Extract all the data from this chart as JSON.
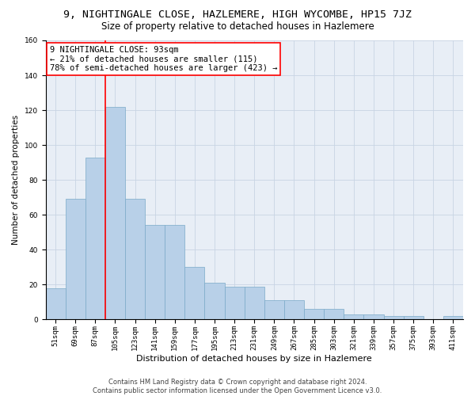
{
  "title": "9, NIGHTINGALE CLOSE, HAZLEMERE, HIGH WYCOMBE, HP15 7JZ",
  "subtitle": "Size of property relative to detached houses in Hazlemere",
  "xlabel": "Distribution of detached houses by size in Hazlemere",
  "ylabel": "Number of detached properties",
  "bar_color": "#b8d0e8",
  "bar_edge_color": "#7aaac8",
  "categories": [
    "51sqm",
    "69sqm",
    "87sqm",
    "105sqm",
    "123sqm",
    "141sqm",
    "159sqm",
    "177sqm",
    "195sqm",
    "213sqm",
    "231sqm",
    "249sqm",
    "267sqm",
    "285sqm",
    "303sqm",
    "321sqm",
    "339sqm",
    "357sqm",
    "375sqm",
    "393sqm",
    "411sqm"
  ],
  "values": [
    18,
    69,
    93,
    122,
    69,
    54,
    54,
    30,
    21,
    19,
    19,
    11,
    11,
    6,
    6,
    3,
    3,
    2,
    2,
    0,
    2
  ],
  "property_bin_index": 2,
  "annotation_line1": "9 NIGHTINGALE CLOSE: 93sqm",
  "annotation_line2": "← 21% of detached houses are smaller (115)",
  "annotation_line3": "78% of semi-detached houses are larger (423) →",
  "annotation_box_color": "white",
  "annotation_box_edge_color": "red",
  "vline_color": "red",
  "footnote1": "Contains HM Land Registry data © Crown copyright and database right 2024.",
  "footnote2": "Contains public sector information licensed under the Open Government Licence v3.0.",
  "ylim": [
    0,
    160
  ],
  "yticks": [
    0,
    20,
    40,
    60,
    80,
    100,
    120,
    140,
    160
  ],
  "grid_color": "#c8d4e4",
  "background_color": "#e8eef6",
  "title_fontsize": 9.5,
  "subtitle_fontsize": 8.5,
  "xlabel_fontsize": 8,
  "ylabel_fontsize": 7.5,
  "tick_fontsize": 6.5,
  "annotation_fontsize": 7.5,
  "footnote_fontsize": 6
}
